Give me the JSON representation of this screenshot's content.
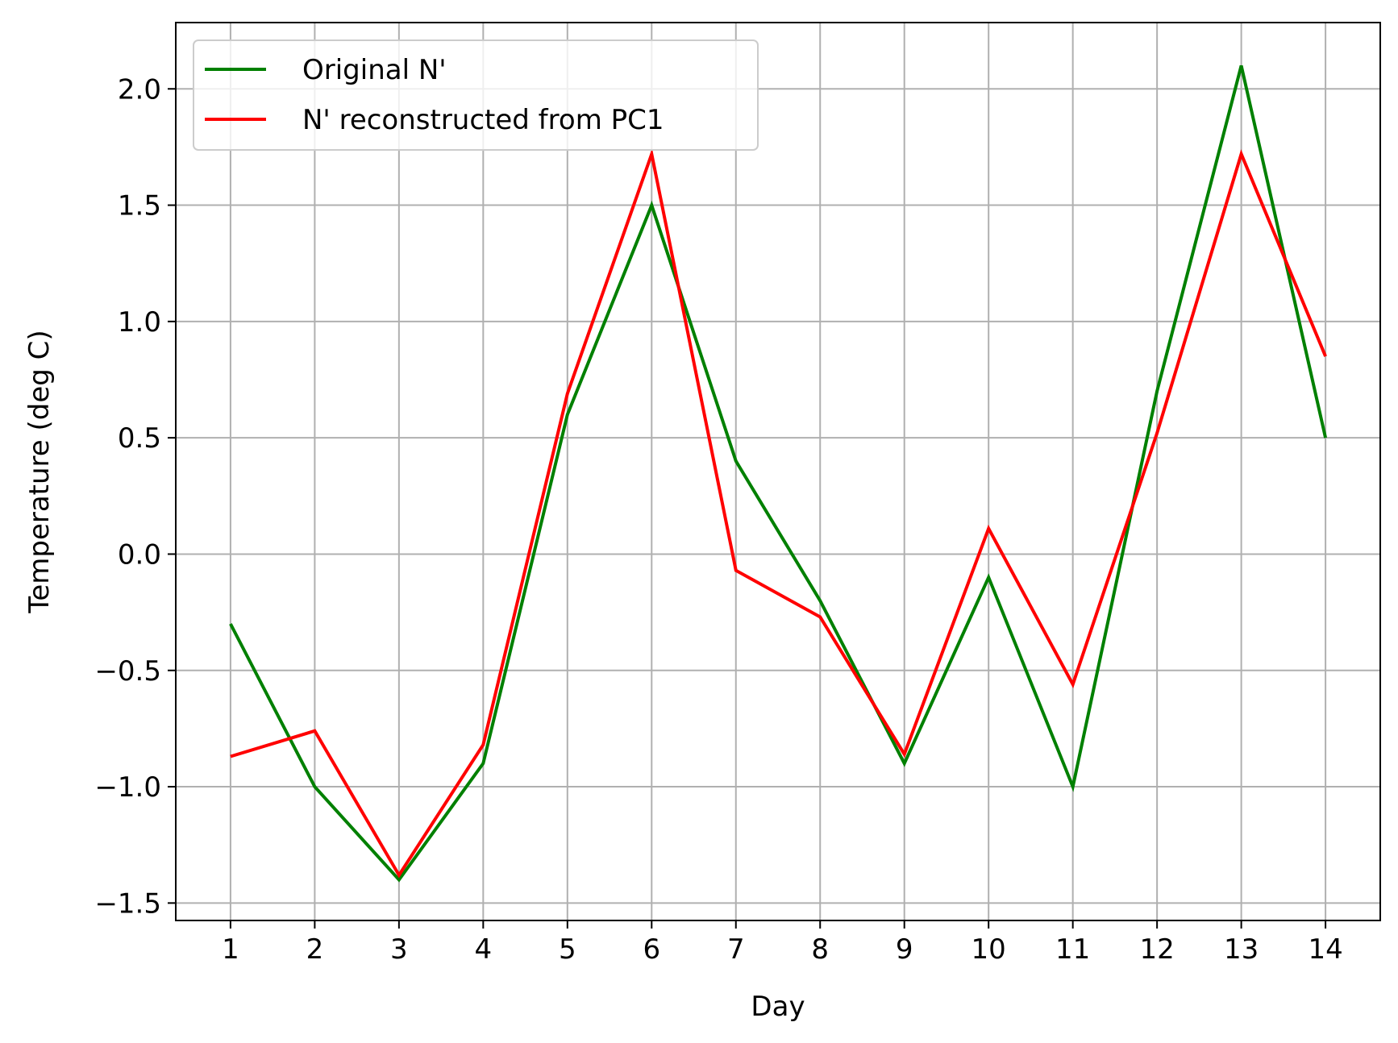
{
  "chart_data": {
    "type": "line",
    "title": "",
    "xlabel": "Day",
    "ylabel": "Temperature (deg C)",
    "x": [
      1,
      2,
      3,
      4,
      5,
      6,
      7,
      8,
      9,
      10,
      11,
      12,
      13,
      14
    ],
    "x_tick_labels": [
      "1",
      "2",
      "3",
      "4",
      "5",
      "6",
      "7",
      "8",
      "9",
      "10",
      "11",
      "12",
      "13",
      "14"
    ],
    "xlim": [
      0.35,
      14.65
    ],
    "ylim": [
      -1.575,
      2.285
    ],
    "y_ticks": [
      -1.5,
      -1.0,
      -0.5,
      0.0,
      0.5,
      1.0,
      1.5,
      2.0
    ],
    "y_tick_labels": [
      "−1.5",
      "−1.0",
      "−0.5",
      "0.0",
      "0.5",
      "1.0",
      "1.5",
      "2.0"
    ],
    "grid": true,
    "legend_position": "top-left",
    "series": [
      {
        "name": "Original N'",
        "color": "#008000",
        "values": [
          -0.3,
          -1.0,
          -1.4,
          -0.9,
          0.6,
          1.5,
          0.4,
          -0.2,
          -0.9,
          -0.1,
          -1.0,
          0.7,
          2.1,
          0.5
        ]
      },
      {
        "name": "N' reconstructed from PC1",
        "color": "#ff0000",
        "values": [
          -0.87,
          -0.76,
          -1.38,
          -0.82,
          0.69,
          1.72,
          -0.07,
          -0.27,
          -0.86,
          0.11,
          -0.56,
          0.52,
          1.72,
          0.85
        ]
      }
    ]
  }
}
